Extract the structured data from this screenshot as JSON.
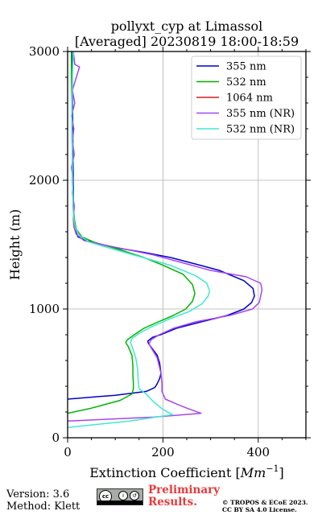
{
  "chart_data": {
    "type": "line",
    "title": "pollyxt_cyp at Limassol",
    "subtitle": "[Averaged] 20230819 18:00-18:59",
    "xlabel": "Extinction Coefficient",
    "xlabel_unit_base": "Mm",
    "xlabel_unit_exp": "−1",
    "ylabel": "Height (m)",
    "xlim": [
      0,
      500
    ],
    "ylim": [
      0,
      3000
    ],
    "xticks": [
      0,
      200,
      400
    ],
    "yticks": [
      0,
      1000,
      2000,
      3000
    ],
    "grid": true,
    "legend_position": "top-right",
    "series": [
      {
        "name": "355 nm",
        "color": "#0000cd",
        "points": [
          [
            0,
            300
          ],
          [
            100,
            330
          ],
          [
            165,
            360
          ],
          [
            183,
            390
          ],
          [
            188,
            420
          ],
          [
            193,
            460
          ],
          [
            196,
            500
          ],
          [
            193,
            580
          ],
          [
            188,
            640
          ],
          [
            178,
            690
          ],
          [
            170,
            730
          ],
          [
            168,
            750
          ],
          [
            178,
            780
          ],
          [
            195,
            800
          ],
          [
            228,
            850
          ],
          [
            280,
            900
          ],
          [
            335,
            950
          ],
          [
            370,
            1000
          ],
          [
            386,
            1050
          ],
          [
            392,
            1100
          ],
          [
            389,
            1160
          ],
          [
            370,
            1220
          ],
          [
            318,
            1300
          ],
          [
            278,
            1340
          ],
          [
            216,
            1400
          ],
          [
            160,
            1440
          ],
          [
            95,
            1480
          ],
          [
            40,
            1530
          ],
          [
            22,
            1560
          ],
          [
            15,
            1620
          ],
          [
            13,
            1700
          ],
          [
            12,
            1800
          ],
          [
            12,
            1900
          ],
          [
            12,
            2000
          ],
          [
            11,
            2200
          ],
          [
            11,
            2400
          ],
          [
            10,
            2600
          ],
          [
            10,
            2800
          ],
          [
            9,
            3000
          ]
        ]
      },
      {
        "name": "532 nm",
        "color": "#00b400",
        "points": [
          [
            0,
            190
          ],
          [
            50,
            230
          ],
          [
            110,
            290
          ],
          [
            135,
            340
          ],
          [
            138,
            380
          ],
          [
            138,
            430
          ],
          [
            137,
            480
          ],
          [
            137,
            560
          ],
          [
            135,
            640
          ],
          [
            127,
            710
          ],
          [
            122,
            740
          ],
          [
            125,
            760
          ],
          [
            140,
            800
          ],
          [
            160,
            850
          ],
          [
            190,
            900
          ],
          [
            222,
            950
          ],
          [
            248,
            1000
          ],
          [
            262,
            1060
          ],
          [
            267,
            1120
          ],
          [
            262,
            1190
          ],
          [
            242,
            1270
          ],
          [
            200,
            1340
          ],
          [
            160,
            1400
          ],
          [
            110,
            1460
          ],
          [
            55,
            1520
          ],
          [
            30,
            1560
          ],
          [
            18,
            1620
          ],
          [
            14,
            1700
          ],
          [
            12,
            1800
          ],
          [
            11,
            1900
          ],
          [
            10,
            2000
          ],
          [
            10,
            2200
          ],
          [
            9,
            2400
          ],
          [
            9,
            2600
          ],
          [
            8,
            2800
          ],
          [
            8,
            3000
          ]
        ]
      },
      {
        "name": "1064 nm",
        "color": "#d41f1f",
        "points": []
      },
      {
        "name": "355 nm (NR)",
        "color": "#a745f0",
        "points": [
          [
            0,
            130
          ],
          [
            180,
            160
          ],
          [
            280,
            190
          ],
          [
            250,
            230
          ],
          [
            230,
            260
          ],
          [
            205,
            300
          ],
          [
            198,
            360
          ],
          [
            198,
            420
          ],
          [
            196,
            500
          ],
          [
            188,
            620
          ],
          [
            175,
            700
          ],
          [
            171,
            730
          ],
          [
            175,
            760
          ],
          [
            192,
            800
          ],
          [
            222,
            850
          ],
          [
            268,
            900
          ],
          [
            340,
            950
          ],
          [
            388,
            1000
          ],
          [
            402,
            1050
          ],
          [
            405,
            1100
          ],
          [
            408,
            1150
          ],
          [
            405,
            1200
          ],
          [
            375,
            1250
          ],
          [
            300,
            1300
          ],
          [
            240,
            1360
          ],
          [
            180,
            1420
          ],
          [
            100,
            1480
          ],
          [
            35,
            1530
          ],
          [
            18,
            1580
          ],
          [
            13,
            1640
          ],
          [
            12,
            1700
          ],
          [
            14,
            1800
          ],
          [
            10,
            1900
          ],
          [
            12,
            2000
          ],
          [
            8,
            2100
          ],
          [
            14,
            2200
          ],
          [
            10,
            2300
          ],
          [
            13,
            2400
          ],
          [
            8,
            2500
          ],
          [
            15,
            2600
          ],
          [
            10,
            2700
          ],
          [
            25,
            2880
          ],
          [
            15,
            2900
          ],
          [
            12,
            3000
          ]
        ]
      },
      {
        "name": "532 nm (NR)",
        "color": "#40e8d0",
        "points": [
          [
            0,
            80
          ],
          [
            130,
            130
          ],
          [
            220,
            180
          ],
          [
            200,
            220
          ],
          [
            180,
            280
          ],
          [
            165,
            340
          ],
          [
            150,
            380
          ],
          [
            148,
            450
          ],
          [
            147,
            530
          ],
          [
            143,
            620
          ],
          [
            137,
            690
          ],
          [
            132,
            740
          ],
          [
            135,
            770
          ],
          [
            150,
            810
          ],
          [
            175,
            860
          ],
          [
            212,
            920
          ],
          [
            255,
            980
          ],
          [
            282,
            1040
          ],
          [
            295,
            1100
          ],
          [
            298,
            1140
          ],
          [
            292,
            1200
          ],
          [
            268,
            1260
          ],
          [
            215,
            1340
          ],
          [
            158,
            1400
          ],
          [
            100,
            1460
          ],
          [
            45,
            1520
          ],
          [
            25,
            1570
          ],
          [
            16,
            1630
          ],
          [
            13,
            1700
          ],
          [
            11,
            1800
          ],
          [
            11,
            1900
          ],
          [
            10,
            2000
          ],
          [
            10,
            2200
          ],
          [
            9,
            2400
          ],
          [
            9,
            2600
          ],
          [
            10,
            2800
          ],
          [
            12,
            3000
          ]
        ]
      }
    ]
  },
  "footer": {
    "version": "Version: 3.6",
    "method": "Method: Klett",
    "preliminary": "Preliminary\nResults.",
    "copyright": "© TROPOS & ECoE 2023.\nCC BY SA 4.0 License.",
    "license_badge": {
      "cc": "cc",
      "by": "BY",
      "sa": "SA"
    }
  }
}
